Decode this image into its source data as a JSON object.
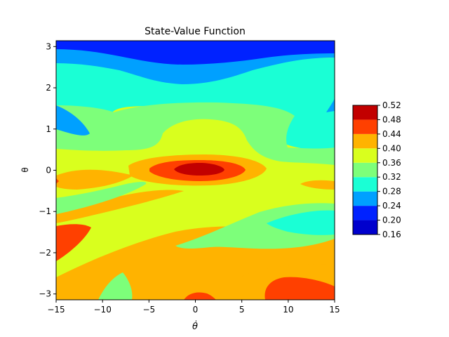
{
  "chart_data": {
    "type": "heatmap",
    "subtype": "filled-contour",
    "title": "State-Value Function",
    "xlabel": "θ̇",
    "ylabel": "θ",
    "xlim": [
      -15,
      15
    ],
    "ylim": [
      -3.14159,
      3.14159
    ],
    "xticks": [
      -15,
      -10,
      -5,
      0,
      5,
      10,
      15
    ],
    "xtick_labels": [
      "−15",
      "−10",
      "−5",
      "0",
      "5",
      "10",
      "15"
    ],
    "yticks": [
      -3,
      -2,
      -1,
      0,
      1,
      2,
      3
    ],
    "ytick_labels": [
      "−3",
      "−2",
      "−1",
      "0",
      "1",
      "2",
      "3"
    ],
    "colormap": "jet",
    "levels": [
      0.16,
      0.2,
      0.24,
      0.28,
      0.32,
      0.36,
      0.4,
      0.44,
      0.48,
      0.52
    ],
    "level_labels": [
      "0.16",
      "0.20",
      "0.24",
      "0.28",
      "0.32",
      "0.36",
      "0.40",
      "0.44",
      "0.48",
      "0.52"
    ],
    "level_colors": [
      "#0000cd",
      "#0022ff",
      "#00a0ff",
      "#1affd5",
      "#7dff7a",
      "#d9ff1e",
      "#ffb300",
      "#ff4000",
      "#c20000"
    ],
    "colorbar": "right",
    "value_range": [
      0.16,
      0.52
    ]
  }
}
